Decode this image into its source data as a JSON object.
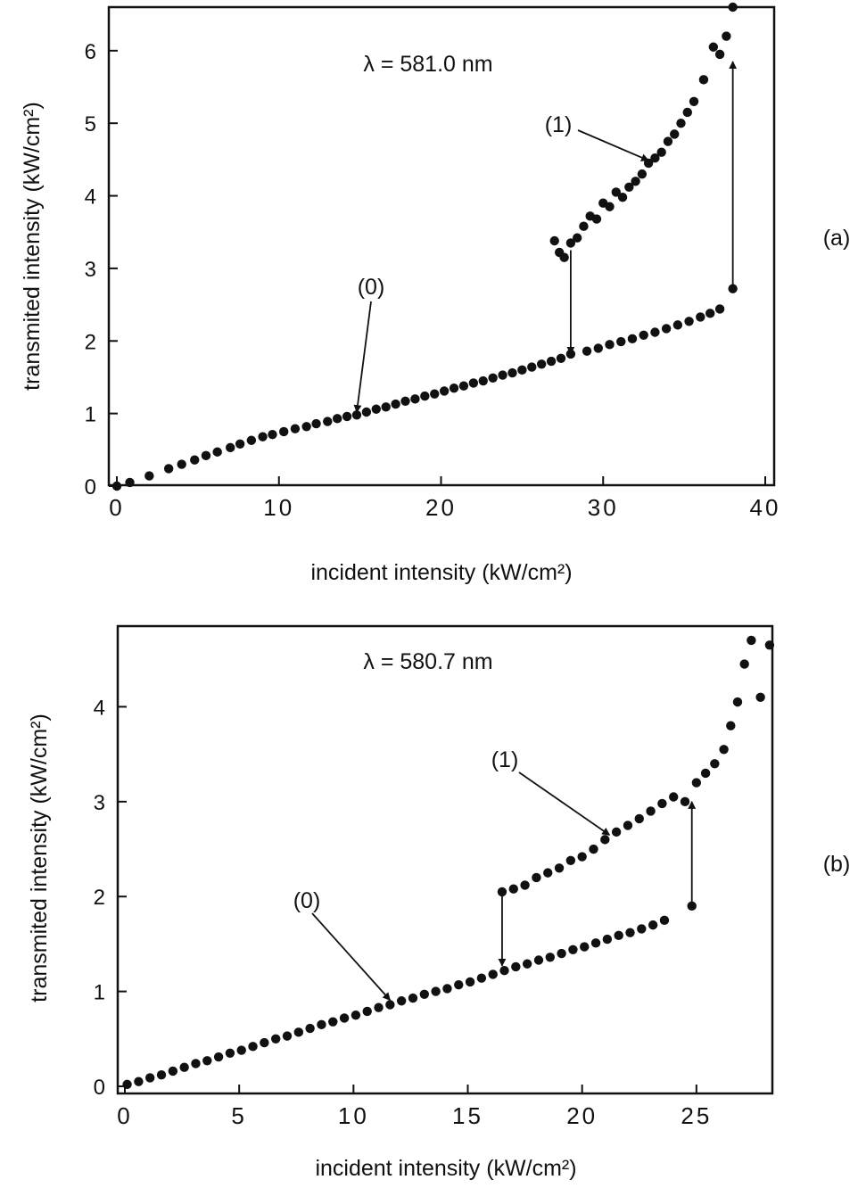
{
  "chart_data": [
    {
      "type": "scatter",
      "panel_label": "(a)",
      "annotation": "λ = 581.0 nm",
      "xlabel": "incident intensity (kW/cm²)",
      "ylabel": "transmited intensity (kW/cm²)",
      "xlim": [
        0,
        40
      ],
      "ylim": [
        0,
        6.6
      ],
      "xticks": [
        0,
        10,
        20,
        30,
        40
      ],
      "yticks": [
        0,
        1,
        2,
        3,
        4,
        5,
        6
      ],
      "grid": false,
      "branch_labels": [
        {
          "text": "(0)",
          "target": [
            14.8,
            0.98
          ]
        },
        {
          "text": "(1)",
          "target": [
            32.8,
            4.45
          ]
        }
      ],
      "jump_arrows": [
        {
          "x": 28.0,
          "from": 3.25,
          "to": 1.82
        },
        {
          "x": 38.0,
          "from": 2.72,
          "to": 5.85
        }
      ],
      "series": [
        {
          "x": [
            0,
            0.8,
            2,
            3.2,
            4,
            4.8,
            5.5,
            6.2,
            7,
            7.6,
            8.3,
            9,
            9.6,
            10.3,
            11,
            11.7,
            12.3,
            13,
            13.6,
            14.2,
            14.8,
            15.4,
            16,
            16.6,
            17.2,
            17.8,
            18.4,
            19,
            19.6,
            20.2,
            20.8,
            21.4,
            22,
            22.6,
            23.2,
            23.8,
            24.4,
            25,
            25.6,
            26.2,
            26.8,
            27.4,
            28,
            29,
            29.7,
            30.4,
            31.1,
            31.8,
            32.5,
            33.2,
            33.9,
            34.6,
            35.3,
            36,
            36.6,
            37.2,
            38
          ],
          "y": [
            0,
            0.05,
            0.14,
            0.24,
            0.3,
            0.36,
            0.42,
            0.47,
            0.53,
            0.58,
            0.63,
            0.68,
            0.71,
            0.75,
            0.79,
            0.82,
            0.86,
            0.89,
            0.93,
            0.96,
            0.98,
            1.02,
            1.06,
            1.09,
            1.13,
            1.17,
            1.2,
            1.24,
            1.27,
            1.31,
            1.35,
            1.38,
            1.42,
            1.45,
            1.49,
            1.53,
            1.56,
            1.6,
            1.64,
            1.68,
            1.72,
            1.76,
            1.82,
            1.86,
            1.9,
            1.95,
            1.99,
            2.03,
            2.08,
            2.12,
            2.17,
            2.22,
            2.27,
            2.33,
            2.38,
            2.44,
            2.72
          ]
        },
        {
          "x": [
            27,
            27.3,
            27.6,
            28,
            28.4,
            28.8,
            29.2,
            29.6,
            30,
            30.4,
            30.8,
            31.2,
            31.6,
            32,
            32.4,
            32.8,
            33.2,
            33.6,
            34,
            34.4,
            34.8,
            35.2,
            35.6,
            36.2,
            36.8,
            37.2,
            37.6,
            38
          ],
          "y": [
            3.38,
            3.22,
            3.15,
            3.35,
            3.42,
            3.58,
            3.72,
            3.68,
            3.9,
            3.85,
            4.05,
            3.98,
            4.12,
            4.2,
            4.3,
            4.45,
            4.52,
            4.6,
            4.75,
            4.85,
            5.0,
            5.15,
            5.3,
            5.6,
            6.05,
            5.95,
            6.2,
            6.6
          ]
        }
      ]
    },
    {
      "type": "scatter",
      "panel_label": "(b)",
      "annotation": "λ = 580.7 nm",
      "xlabel": "incident intensity (kW/cm²)",
      "ylabel": "transmited intensity (kW/cm²)",
      "xlim": [
        0,
        28.4
      ],
      "ylim": [
        0,
        4.85
      ],
      "xticks": [
        0,
        5,
        10,
        15,
        20,
        25
      ],
      "yticks": [
        0,
        1,
        2,
        3,
        4
      ],
      "grid": false,
      "branch_labels": [
        {
          "text": "(0)",
          "target": [
            11.6,
            0.88
          ]
        },
        {
          "text": "(1)",
          "target": [
            21.2,
            2.62
          ]
        }
      ],
      "jump_arrows": [
        {
          "x": 16.5,
          "from": 2.05,
          "to": 1.27
        },
        {
          "x": 24.8,
          "from": 1.9,
          "to": 3.0
        }
      ],
      "series": [
        {
          "x": [
            0.1,
            0.6,
            1.1,
            1.6,
            2.1,
            2.6,
            3.1,
            3.6,
            4.1,
            4.6,
            5.1,
            5.6,
            6.1,
            6.6,
            7.1,
            7.6,
            8.1,
            8.6,
            9.1,
            9.6,
            10.1,
            10.6,
            11.1,
            11.6,
            12.1,
            12.6,
            13.1,
            13.6,
            14.1,
            14.6,
            15.1,
            15.6,
            16.1,
            16.6,
            17.1,
            17.6,
            18.1,
            18.6,
            19.1,
            19.6,
            20.1,
            20.6,
            21.1,
            21.6,
            22.1,
            22.6,
            23.1,
            23.6,
            24.8
          ],
          "y": [
            0.02,
            0.05,
            0.09,
            0.12,
            0.16,
            0.2,
            0.24,
            0.27,
            0.31,
            0.35,
            0.38,
            0.42,
            0.46,
            0.5,
            0.53,
            0.57,
            0.61,
            0.65,
            0.68,
            0.72,
            0.75,
            0.79,
            0.83,
            0.86,
            0.9,
            0.93,
            0.97,
            1.0,
            1.03,
            1.07,
            1.1,
            1.14,
            1.18,
            1.22,
            1.26,
            1.29,
            1.33,
            1.36,
            1.4,
            1.44,
            1.47,
            1.51,
            1.55,
            1.59,
            1.62,
            1.66,
            1.7,
            1.75,
            1.9
          ]
        },
        {
          "x": [
            16.5,
            17,
            17.5,
            18,
            18.5,
            19,
            19.5,
            20,
            20.5,
            21,
            21.5,
            22,
            22.5,
            23,
            23.5,
            24,
            24.5,
            25,
            25.4,
            25.8,
            26.2,
            26.5,
            26.8,
            27.1,
            27.4,
            27.8,
            28.2
          ],
          "y": [
            2.05,
            2.08,
            2.12,
            2.2,
            2.25,
            2.3,
            2.38,
            2.42,
            2.5,
            2.6,
            2.68,
            2.75,
            2.82,
            2.9,
            2.98,
            3.05,
            3.0,
            3.2,
            3.3,
            3.4,
            3.55,
            3.8,
            4.05,
            4.45,
            4.7,
            4.1,
            4.65
          ]
        }
      ]
    }
  ]
}
